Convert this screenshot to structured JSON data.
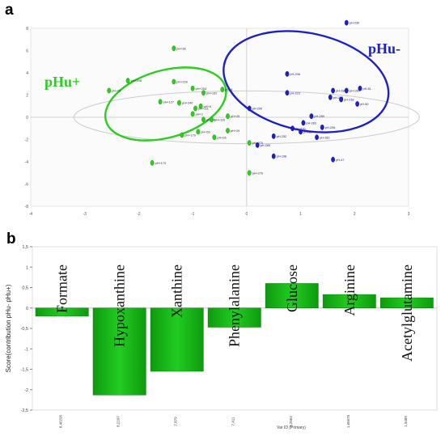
{
  "panel_a": {
    "label": "a",
    "chart_data": {
      "type": "scatter",
      "title": "",
      "xlabel": "",
      "ylabel": "",
      "xlim": [
        -4,
        3
      ],
      "ylim": [
        -8,
        8
      ],
      "x_ticks": [
        "-4",
        "-3",
        "-2",
        "-1",
        "0",
        "1",
        "2",
        "3"
      ],
      "y_ticks": [
        "8",
        "6",
        "4",
        "2",
        "0",
        "-2",
        "-4",
        "-6",
        "-8"
      ],
      "grid": false,
      "groups": [
        {
          "name": "pHu+",
          "color": "#2ecc1f",
          "ellipse": {
            "cx": -1.5,
            "cy": 1.2,
            "rx": 1.15,
            "ry": 5.8,
            "rotate_deg": -16
          },
          "points": [
            {
              "label": "pH+36",
              "x": -1.35,
              "y": 6.2
            },
            {
              "label": "pH+208",
              "x": -2.2,
              "y": 3.3
            },
            {
              "label": "pH+78",
              "x": -2.55,
              "y": 2.4
            },
            {
              "label": "pH+228",
              "x": -1.35,
              "y": 3.2
            },
            {
              "label": "pH+204",
              "x": -1.0,
              "y": 2.6
            },
            {
              "label": "pH+192",
              "x": -0.8,
              "y": 2.2
            },
            {
              "label": "pH+4",
              "x": -0.45,
              "y": 2.5
            },
            {
              "label": "pH+127",
              "x": -1.6,
              "y": 1.4
            },
            {
              "label": "pH+240",
              "x": -1.25,
              "y": 1.3
            },
            {
              "label": "pH+6",
              "x": -0.85,
              "y": 1.0
            },
            {
              "label": "pH+111",
              "x": -0.95,
              "y": 0.8
            },
            {
              "label": "pH+2",
              "x": -1.0,
              "y": 0.3
            },
            {
              "label": "pH+60",
              "x": -0.8,
              "y": -0.2
            },
            {
              "label": "pH+116",
              "x": -0.65,
              "y": -0.2
            },
            {
              "label": "pH+25",
              "x": -0.35,
              "y": 0.1
            },
            {
              "label": "pH+179",
              "x": -1.2,
              "y": -1.6
            },
            {
              "label": "pH+59",
              "x": -0.9,
              "y": -1.3
            },
            {
              "label": "pH+26",
              "x": -0.6,
              "y": -1.8
            },
            {
              "label": "pH+29",
              "x": -0.35,
              "y": -1.2
            },
            {
              "label": "pH+173",
              "x": -1.75,
              "y": -4.1
            },
            {
              "label": "pH+270",
              "x": 0.05,
              "y": -2.3
            },
            {
              "label": "pH+276",
              "x": 0.05,
              "y": -5.0
            }
          ]
        },
        {
          "name": "pHu-",
          "color": "#1f1fc8",
          "ellipse": {
            "cx": 1.1,
            "cy": 3.2,
            "rx": 1.55,
            "ry": 8.4,
            "rotate_deg": 12
          },
          "points": [
            {
              "label": "pH-230",
              "x": 1.85,
              "y": 8.5
            },
            {
              "label": "pH-208",
              "x": 0.75,
              "y": 3.9
            },
            {
              "label": "pH-61",
              "x": 2.1,
              "y": 2.6
            },
            {
              "label": "pH-280",
              "x": 1.6,
              "y": 2.4
            },
            {
              "label": "pH-190",
              "x": 1.85,
              "y": 2.4
            },
            {
              "label": "pH-205",
              "x": 1.55,
              "y": 1.8
            },
            {
              "label": "pH-50",
              "x": 2.05,
              "y": 1.2
            },
            {
              "label": "pH-218",
              "x": 1.75,
              "y": 1.6
            },
            {
              "label": "pH-223",
              "x": 0.75,
              "y": 2.2
            },
            {
              "label": "pH-290",
              "x": 0.05,
              "y": 0.8
            },
            {
              "label": "pH-289",
              "x": 1.2,
              "y": 0.1
            },
            {
              "label": "pH-283",
              "x": 1.05,
              "y": -0.5
            },
            {
              "label": "pH-270",
              "x": 0.85,
              "y": -1.0
            },
            {
              "label": "pH-206",
              "x": 1.4,
              "y": -0.9
            },
            {
              "label": "pH-68",
              "x": 1.0,
              "y": -1.3
            },
            {
              "label": "pH-262",
              "x": 1.3,
              "y": -1.8
            },
            {
              "label": "pH-232",
              "x": 0.5,
              "y": -1.7
            },
            {
              "label": "pH-265",
              "x": 0.2,
              "y": -2.5
            },
            {
              "label": "pH-198",
              "x": 0.5,
              "y": -3.5
            },
            {
              "label": "pH-47",
              "x": 1.6,
              "y": -3.8
            }
          ]
        }
      ],
      "ellipse_hotelling": {
        "cx": 0,
        "cy": 0,
        "rx": 3.2,
        "ry": 7.2,
        "color": "#cccccc"
      },
      "annotations": [
        "pHu+",
        "pHu-"
      ]
    }
  },
  "panel_b": {
    "label": "b",
    "chart_data": {
      "type": "bar",
      "title": "",
      "xlabel": "Var ID (Primary)",
      "ylabel": "Score(contribution pHu- pHu+)",
      "ylim": [
        -2.5,
        1.5
      ],
      "y_ticks": [
        "1,5",
        "1",
        "0,5",
        "0",
        "-0,5",
        "-1",
        "-1,5",
        "-2",
        "-2,5"
      ],
      "categories": [
        "8,46295",
        "8,2107",
        "7,879",
        "7,411",
        "3,2564",
        "1,65675",
        "1,9489"
      ],
      "bar_labels": [
        "Formate",
        "Hypoxanthine",
        "Xanthine",
        "Phenylalanine",
        "Glucose",
        "Arginine",
        "Acetylglutamine"
      ],
      "values": [
        -0.2,
        -2.13,
        -1.55,
        -0.47,
        0.6,
        0.33,
        0.25
      ],
      "bar_color": "#22cc22",
      "grid": false
    }
  }
}
